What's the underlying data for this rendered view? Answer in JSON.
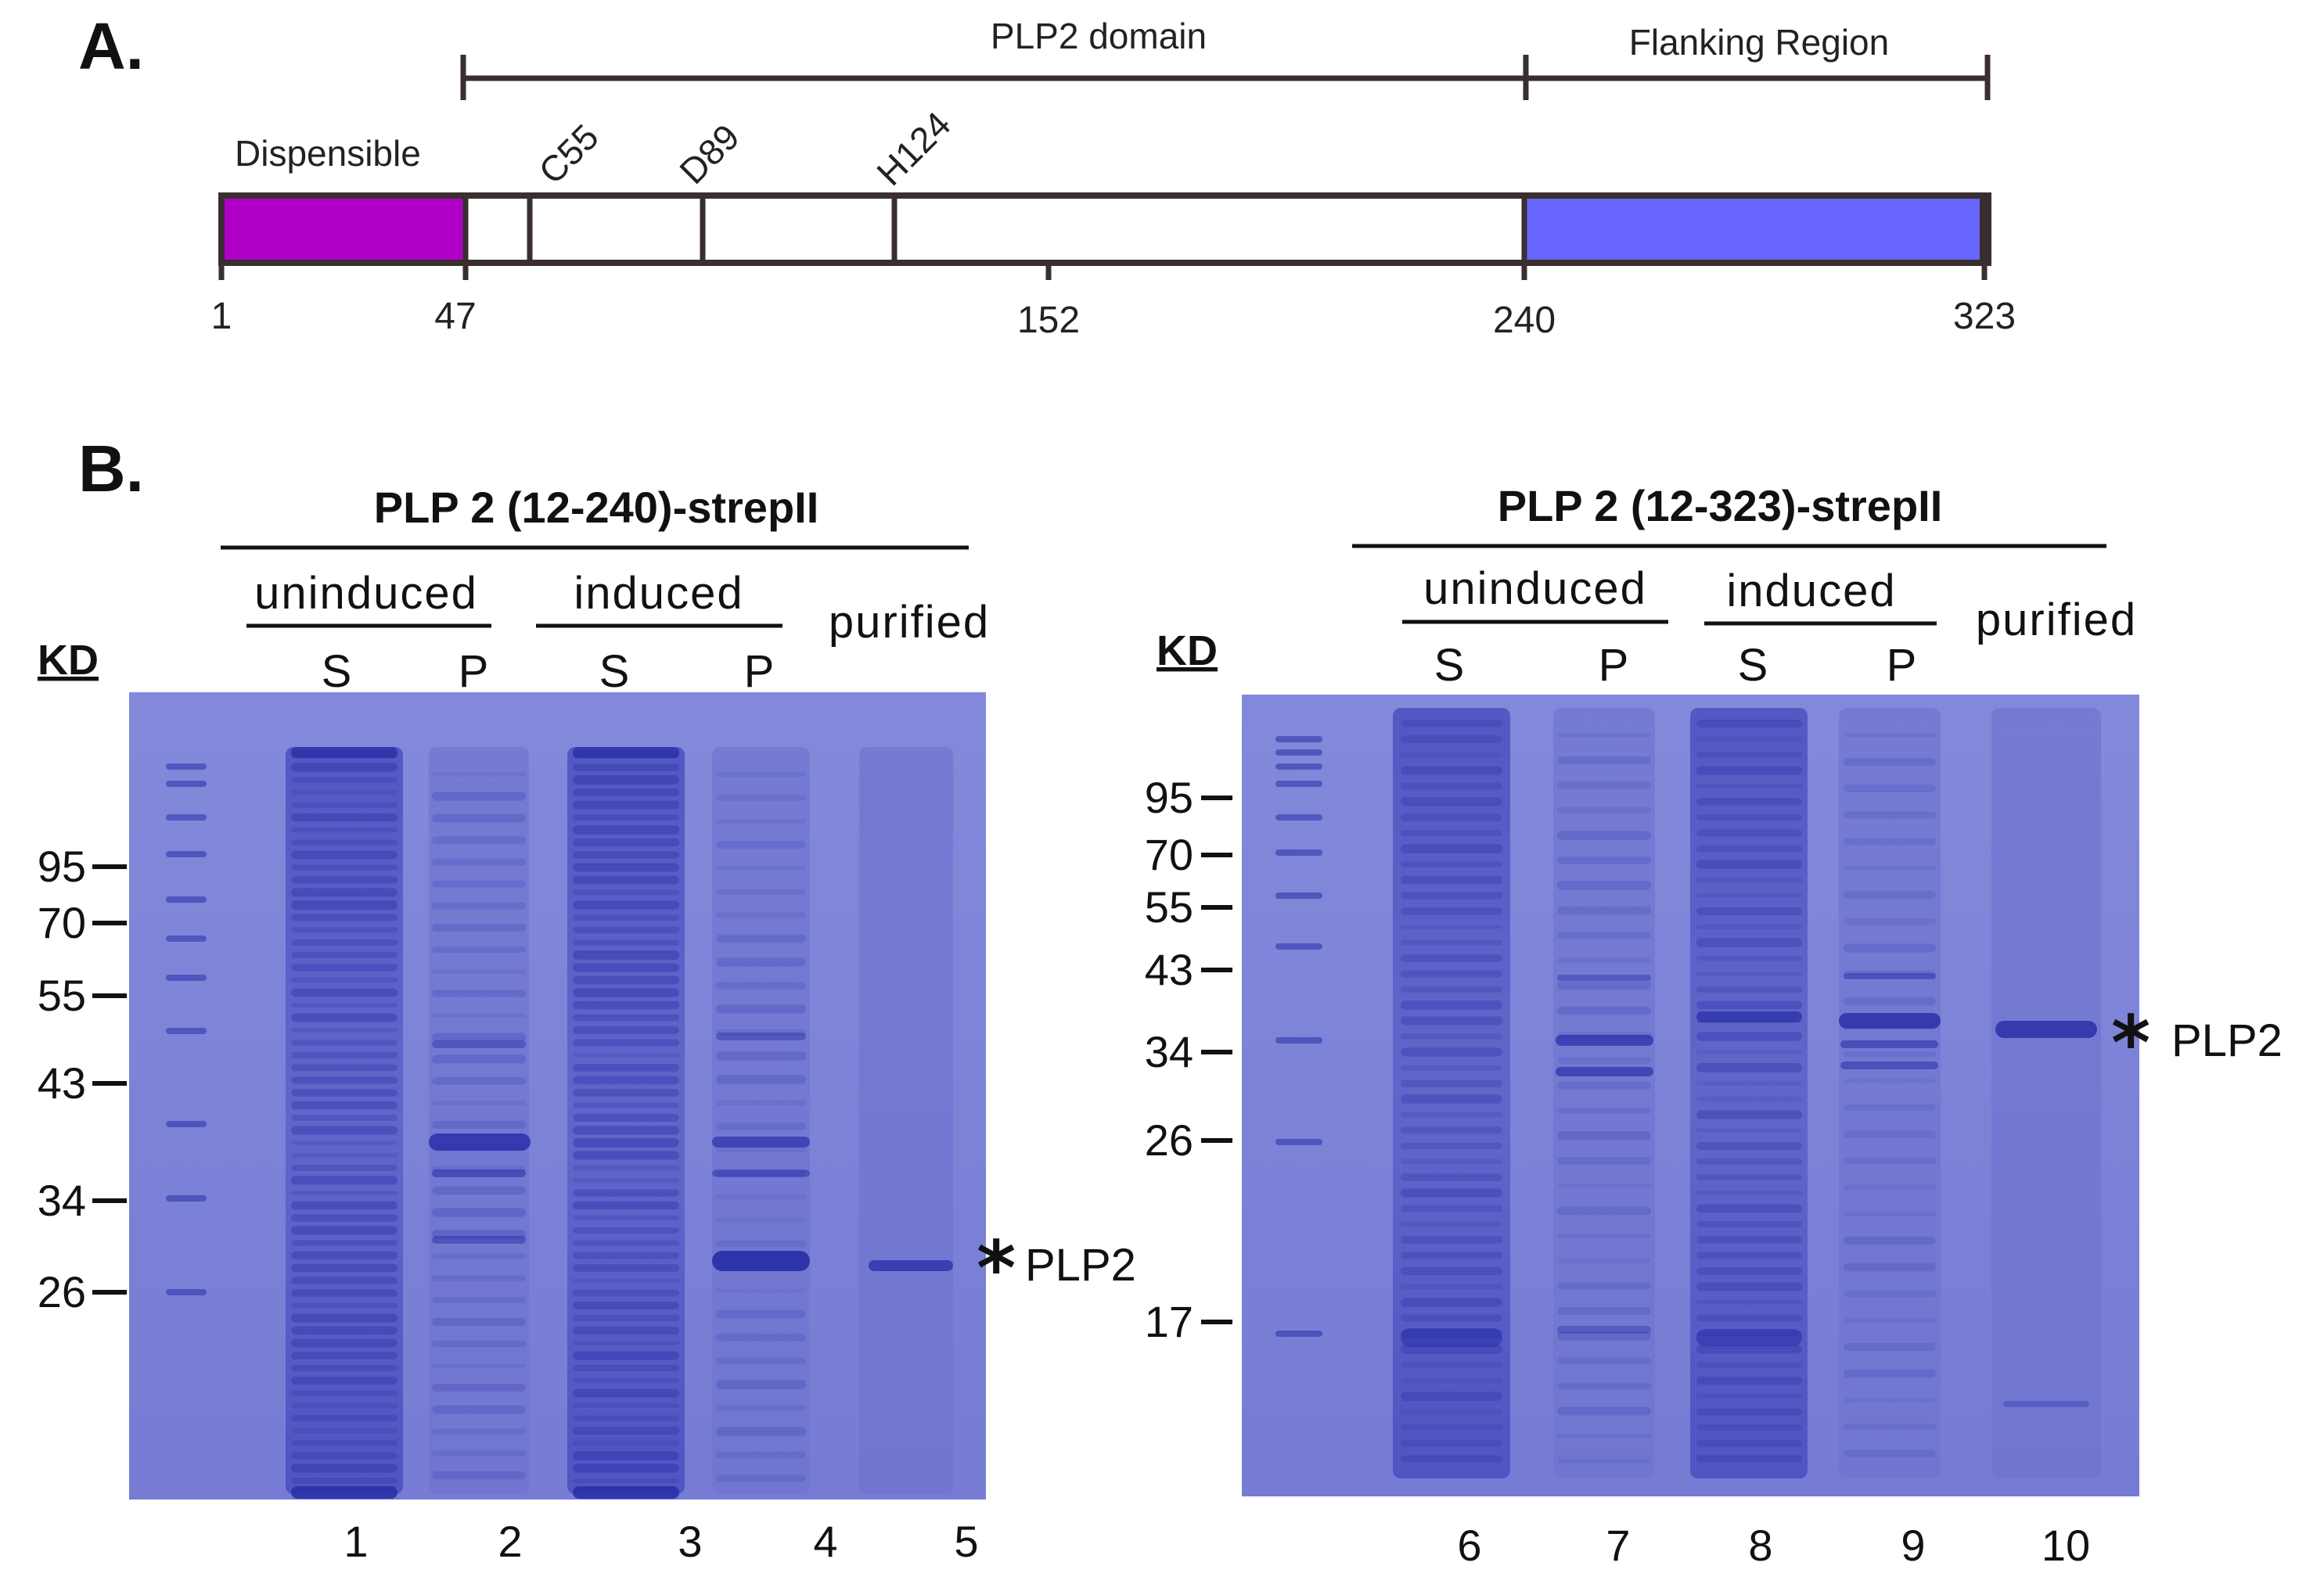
{
  "panel_a": {
    "letter": "A.",
    "domain_label": "PLP2 domain",
    "flank_label": "Flanking Region",
    "dispensible_label": "Dispensible",
    "residue_labels": [
      "C55",
      "D89",
      "H124"
    ],
    "ticks": [
      "1",
      "47",
      "152",
      "240",
      "323"
    ],
    "colors": {
      "dispensible": "#b000c8",
      "flanking": "#6666ff",
      "outline": "#3a2e2e"
    }
  },
  "panel_b": {
    "letter": "B.",
    "left_gel": {
      "title": "PLP 2 (12-240)-strepII",
      "uninduced": "uninduced",
      "induced": "induced",
      "purified": "purified",
      "s": "S",
      "p": "P",
      "kd": "KD",
      "markers": [
        "95",
        "70",
        "55",
        "43",
        "34",
        "26"
      ],
      "lanes": [
        "1",
        "2",
        "3",
        "4",
        "5"
      ],
      "asterisk": "*",
      "band_label": "PLP2"
    },
    "right_gel": {
      "title": "PLP 2 (12-323)-strepII",
      "uninduced": "uninduced",
      "induced": "induced",
      "purified": "purified",
      "s": "S",
      "p": "P",
      "kd": "KD",
      "markers": [
        "95",
        "70",
        "55",
        "43",
        "34",
        "26",
        "17"
      ],
      "lanes": [
        "6",
        "7",
        "8",
        "9",
        "10"
      ],
      "asterisk": "*",
      "band_label": "PLP2"
    },
    "colors": {
      "gel": "#7a80d6",
      "band": "#2a30a8"
    }
  }
}
